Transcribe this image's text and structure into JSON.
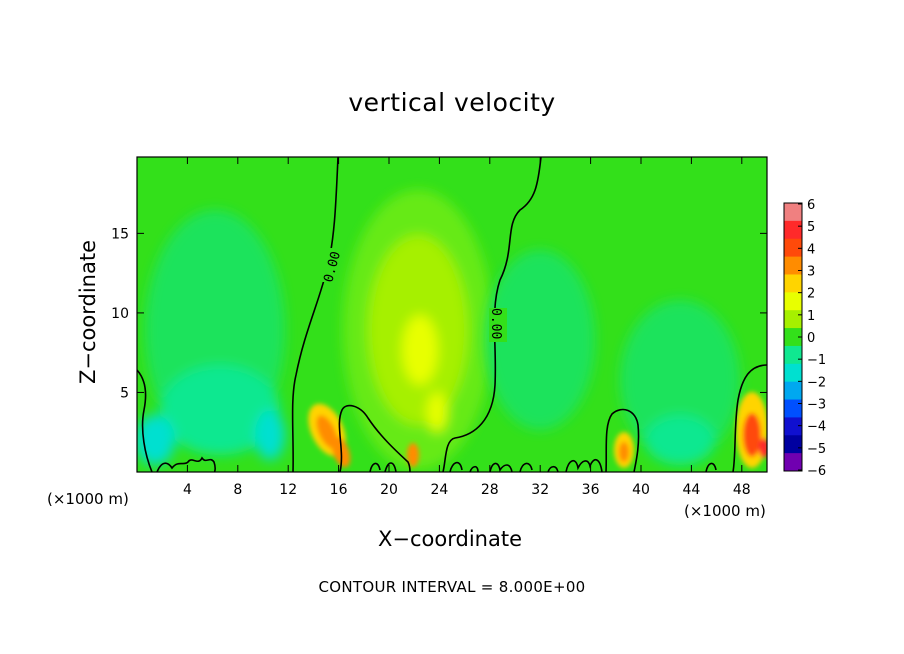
{
  "chart_data": {
    "type": "heatmap",
    "title": "vertical velocity",
    "xlabel": "X−coordinate",
    "ylabel": "Z−coordinate",
    "x_units_left": "(×1000 m)",
    "x_units_right": "(×1000 m)",
    "footer": "CONTOUR INTERVAL = 8.000E+00",
    "xlim": [
      0,
      50
    ],
    "ylim": [
      0,
      19.8
    ],
    "xticks": [
      4,
      8,
      12,
      16,
      20,
      24,
      28,
      32,
      36,
      40,
      44,
      48
    ],
    "xtick_labels": [
      "4",
      "8",
      "12",
      "16",
      "20",
      "24",
      "28",
      "32",
      "36",
      "40",
      "44",
      "48"
    ],
    "yticks": [
      5,
      10,
      15
    ],
    "ytick_labels": [
      "5",
      "10",
      "15"
    ],
    "colorbar": {
      "ticks": [
        6,
        5,
        4,
        3,
        2,
        1,
        0,
        -1,
        -2,
        -3,
        -4,
        -5,
        -6
      ],
      "tick_labels": [
        "6",
        "5",
        "4",
        "3",
        "2",
        "1",
        "0",
        "−1",
        "−2",
        "−3",
        "−4",
        "−5",
        "−6"
      ],
      "colors": [
        "#f08080",
        "#ff2a2a",
        "#ff4a0a",
        "#ff8c00",
        "#ffd400",
        "#e8ff00",
        "#a6f000",
        "#33e01a",
        "#10e890",
        "#00e0d0",
        "#00a8f0",
        "#0050ff",
        "#1010d0",
        "#0000a0",
        "#7000b0"
      ]
    },
    "contour_labels": [
      "0.00",
      "0.00"
    ],
    "features": [
      {
        "name": "central updraft",
        "x": 22,
        "z": 8,
        "w": 1.6
      },
      {
        "name": "low-level updraft",
        "x": 15,
        "z": 2.8,
        "w": 3.5
      },
      {
        "name": "low-level updraft",
        "x": 16.2,
        "z": 1.3,
        "w": 3.2
      },
      {
        "name": "low-level updraft",
        "x": 21.8,
        "z": 1,
        "w": 2.8
      },
      {
        "name": "low-level updraft",
        "x": 38.6,
        "z": 1.2,
        "w": 3.0
      },
      {
        "name": "low-level updraft",
        "x": 48.5,
        "z": 2.5,
        "w": 4.2
      },
      {
        "name": "downdraft",
        "x": 8,
        "z": 1.5,
        "w": -1.6
      },
      {
        "name": "downdraft",
        "x": 1.5,
        "z": 1.5,
        "w": -1.8
      },
      {
        "name": "downdraft",
        "x": 44,
        "z": 2,
        "w": -1.6
      }
    ]
  }
}
